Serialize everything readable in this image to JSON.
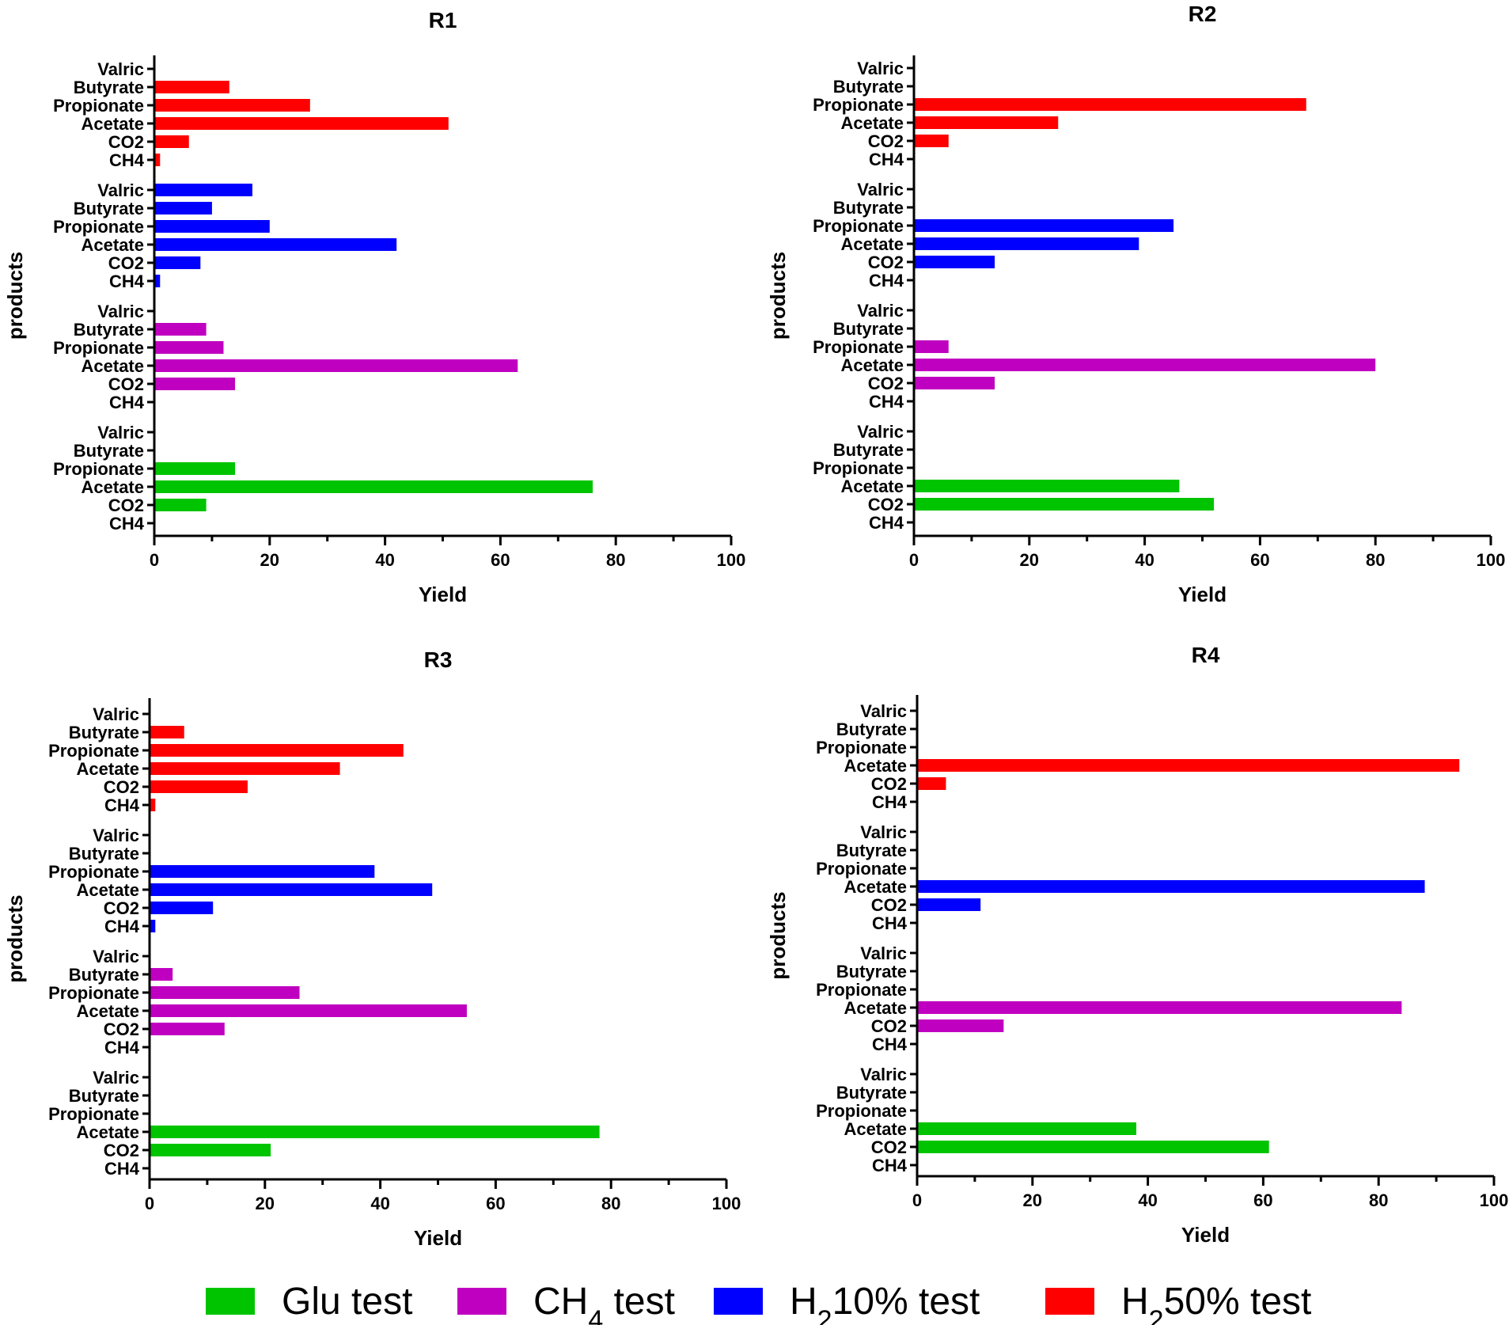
{
  "chart_data": {
    "type": "bar",
    "orientation": "horizontal",
    "categories": [
      "Valric",
      "Butyrate",
      "Propionate",
      "Acetate",
      "CO2",
      "CH4"
    ],
    "group_order_top_to_bottom": [
      "h2_50",
      "h2_10",
      "ch4",
      "glu"
    ],
    "xlim": [
      0,
      100
    ],
    "xticks": [
      0,
      20,
      40,
      60,
      80,
      100
    ],
    "xlabel": "Yield",
    "ylabel": "products",
    "colors": {
      "glu": "#00c400",
      "ch4": "#c000c0",
      "h2_10": "#0000ff",
      "h2_50": "#ff0000"
    },
    "legend": {
      "placement": "bottom",
      "entries": [
        {
          "key": "glu",
          "prefix": "Glu test",
          "subscript": "",
          "suffix": ""
        },
        {
          "key": "ch4",
          "prefix": "CH",
          "subscript": "4",
          "suffix": " test"
        },
        {
          "key": "h2_10",
          "prefix": "H",
          "subscript": "2",
          "suffix": "10% test"
        },
        {
          "key": "h2_50",
          "prefix": "H",
          "subscript": "2",
          "suffix": "50% test"
        }
      ]
    },
    "panels": [
      {
        "title": "R1",
        "series": {
          "h2_50": [
            0,
            13,
            27,
            51,
            6,
            1
          ],
          "h2_10": [
            17,
            10,
            20,
            42,
            8,
            1
          ],
          "ch4": [
            0,
            9,
            12,
            63,
            14,
            0
          ],
          "glu": [
            0,
            0,
            14,
            76,
            9,
            0
          ]
        }
      },
      {
        "title": "R2",
        "series": {
          "h2_50": [
            0,
            0,
            68,
            25,
            6,
            0
          ],
          "h2_10": [
            0,
            0,
            45,
            39,
            14,
            0
          ],
          "ch4": [
            0,
            0,
            6,
            80,
            14,
            0
          ],
          "glu": [
            0,
            0,
            0,
            46,
            52,
            0
          ]
        }
      },
      {
        "title": "R3",
        "series": {
          "h2_50": [
            0,
            6,
            44,
            33,
            17,
            1
          ],
          "h2_10": [
            0,
            0,
            39,
            49,
            11,
            1
          ],
          "ch4": [
            0,
            4,
            26,
            55,
            13,
            0
          ],
          "glu": [
            0,
            0,
            0,
            78,
            21,
            0
          ]
        }
      },
      {
        "title": "R4",
        "series": {
          "h2_50": [
            0,
            0,
            0,
            94,
            5,
            0
          ],
          "h2_10": [
            0,
            0,
            0,
            88,
            11,
            0
          ],
          "ch4": [
            0,
            0,
            0,
            84,
            15,
            0
          ],
          "glu": [
            0,
            0,
            0,
            38,
            61,
            0
          ]
        }
      }
    ]
  }
}
